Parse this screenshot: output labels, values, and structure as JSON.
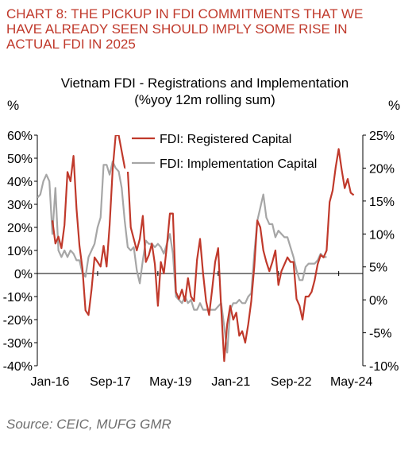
{
  "header": {
    "lines": [
      "CHART 8: THE PICKUP IN FDI COMMITMENTS THAT WE",
      "HAVE ALREADY SEEN SHOULD IMPLY SOME RISE IN",
      "ACTUAL FDI IN 2025"
    ]
  },
  "source": "Source: CEIC, MUFG GMR",
  "colors": {
    "registered": "#c0392b",
    "implementation": "#a6a6a6",
    "title_red": "#c0392b",
    "axis": "#000000"
  },
  "chart_data": {
    "type": "line",
    "title": "Vietnam FDI - Registrations and Implementation",
    "subtitle": "(%yoy 12m rolling sum)",
    "ylabel_left": "%",
    "ylabel_right": "%",
    "x_tick_labels": [
      "Jan-16",
      "Sep-17",
      "May-19",
      "Jan-21",
      "Sep-22",
      "May-24"
    ],
    "x_range": [
      "2016-01",
      "2025-01"
    ],
    "ylim_left": [
      -40,
      60
    ],
    "ylim_right": [
      -10,
      25
    ],
    "y_ticks_left": [
      "60%",
      "50%",
      "40%",
      "30%",
      "20%",
      "10%",
      "0%",
      "-10%",
      "-20%",
      "-30%",
      "-40%"
    ],
    "y_ticks_right": [
      "25%",
      "20%",
      "15%",
      "10%",
      "5%",
      "0%",
      "-5%",
      "-10%"
    ],
    "legend_position": "top-right",
    "grid": false,
    "series": [
      {
        "name": "FDI: Registered Capital",
        "axis": "left",
        "points": [
          [
            "2016-06",
            23
          ],
          [
            "2016-07",
            13
          ],
          [
            "2016-08",
            16
          ],
          [
            "2016-09",
            11
          ],
          [
            "2016-10",
            21
          ],
          [
            "2016-11",
            44
          ],
          [
            "2016-12",
            40
          ],
          [
            "2017-01",
            51
          ],
          [
            "2017-02",
            28
          ],
          [
            "2017-03",
            12
          ],
          [
            "2017-04",
            2
          ],
          [
            "2017-05",
            -16
          ],
          [
            "2017-06",
            -18
          ],
          [
            "2017-07",
            -7
          ],
          [
            "2017-08",
            7
          ],
          [
            "2017-09",
            5
          ],
          [
            "2017-10",
            3
          ],
          [
            "2017-11",
            12
          ],
          [
            "2017-12",
            3
          ],
          [
            "2018-01",
            21
          ],
          [
            "2018-02",
            45
          ],
          [
            "2018-03",
            60
          ],
          [
            "2018-04",
            60
          ],
          [
            "2018-05",
            53
          ],
          [
            "2018-06",
            46
          ],
          [
            "2018-07",
            45
          ],
          [
            "2018-08",
            20
          ],
          [
            "2018-09",
            15
          ],
          [
            "2018-10",
            10
          ],
          [
            "2018-11",
            15
          ],
          [
            "2018-12",
            25
          ],
          [
            "2019-01",
            5
          ],
          [
            "2019-02",
            8
          ],
          [
            "2019-03",
            13
          ],
          [
            "2019-04",
            4
          ],
          [
            "2019-05",
            -14
          ],
          [
            "2019-06",
            5
          ],
          [
            "2019-07",
            0
          ],
          [
            "2019-08",
            12
          ],
          [
            "2019-09",
            26
          ],
          [
            "2019-10",
            26
          ],
          [
            "2019-11",
            -8
          ],
          [
            "2019-12",
            -11
          ],
          [
            "2020-01",
            -7
          ],
          [
            "2020-02",
            -12
          ],
          [
            "2020-03",
            -2
          ],
          [
            "2020-04",
            -10
          ],
          [
            "2020-05",
            -12
          ],
          [
            "2020-06",
            6
          ],
          [
            "2020-07",
            15
          ],
          [
            "2020-08",
            0
          ],
          [
            "2020-09",
            -12
          ],
          [
            "2020-10",
            -18
          ],
          [
            "2020-11",
            -7
          ],
          [
            "2020-12",
            5
          ],
          [
            "2021-01",
            11
          ],
          [
            "2021-02",
            -15
          ],
          [
            "2021-03",
            -38
          ],
          [
            "2021-04",
            -22
          ],
          [
            "2021-05",
            -14
          ],
          [
            "2021-06",
            -20
          ],
          [
            "2021-07",
            -17
          ],
          [
            "2021-08",
            -27
          ],
          [
            "2021-09",
            -25
          ],
          [
            "2021-10",
            -30
          ],
          [
            "2021-11",
            -22
          ],
          [
            "2021-12",
            -12
          ],
          [
            "2022-01",
            3
          ],
          [
            "2022-02",
            23
          ],
          [
            "2022-03",
            20
          ],
          [
            "2022-04",
            10
          ],
          [
            "2022-05",
            5
          ],
          [
            "2022-06",
            1
          ],
          [
            "2022-07",
            5
          ],
          [
            "2022-08",
            10
          ],
          [
            "2022-09",
            -5
          ],
          [
            "2022-10",
            1
          ],
          [
            "2022-11",
            4
          ],
          [
            "2022-12",
            7
          ],
          [
            "2023-01",
            5
          ],
          [
            "2023-02",
            5
          ],
          [
            "2023-03",
            -11
          ],
          [
            "2023-04",
            -14
          ],
          [
            "2023-05",
            -20
          ],
          [
            "2023-06",
            -10
          ],
          [
            "2023-07",
            -10
          ],
          [
            "2023-08",
            -8
          ],
          [
            "2023-09",
            -3
          ],
          [
            "2023-10",
            4
          ],
          [
            "2023-11",
            8
          ],
          [
            "2023-12",
            7
          ],
          [
            "2024-01",
            10
          ],
          [
            "2024-02",
            31
          ],
          [
            "2024-03",
            36
          ],
          [
            "2024-04",
            46
          ],
          [
            "2024-05",
            54
          ],
          [
            "2024-06",
            45
          ],
          [
            "2024-07",
            37
          ],
          [
            "2024-08",
            41
          ],
          [
            "2024-09",
            35
          ],
          [
            "2024-10",
            34
          ]
        ]
      },
      {
        "name": "FDI: Implementation Capital",
        "axis": "right",
        "points": [
          [
            "2016-01",
            15.5
          ],
          [
            "2016-02",
            16
          ],
          [
            "2016-03",
            18
          ],
          [
            "2016-04",
            19
          ],
          [
            "2016-05",
            18
          ],
          [
            "2016-06",
            10
          ],
          [
            "2016-07",
            17
          ],
          [
            "2016-08",
            7.5
          ],
          [
            "2016-09",
            6.5
          ],
          [
            "2016-10",
            7.5
          ],
          [
            "2016-11",
            6.5
          ],
          [
            "2016-12",
            7.5
          ],
          [
            "2017-01",
            7
          ],
          [
            "2017-02",
            6
          ],
          [
            "2017-03",
            6
          ],
          [
            "2017-04",
            4
          ],
          [
            "2017-05",
            3.5
          ],
          [
            "2017-06",
            6.5
          ],
          [
            "2017-07",
            7.5
          ],
          [
            "2017-08",
            8.5
          ],
          [
            "2017-09",
            11
          ],
          [
            "2017-10",
            12.5
          ],
          [
            "2017-11",
            20.5
          ],
          [
            "2017-12",
            20.5
          ],
          [
            "2018-01",
            19
          ],
          [
            "2018-02",
            21
          ],
          [
            "2018-03",
            20
          ],
          [
            "2018-04",
            19.5
          ],
          [
            "2018-05",
            17
          ],
          [
            "2018-06",
            12
          ],
          [
            "2018-07",
            8
          ],
          [
            "2018-08",
            7.5
          ],
          [
            "2018-09",
            8
          ],
          [
            "2018-10",
            4.5
          ],
          [
            "2018-11",
            2.5
          ],
          [
            "2018-12",
            6
          ],
          [
            "2019-01",
            9
          ],
          [
            "2019-02",
            8.5
          ],
          [
            "2019-03",
            8.5
          ],
          [
            "2019-04",
            8
          ],
          [
            "2019-05",
            8.5
          ],
          [
            "2019-06",
            8
          ],
          [
            "2019-07",
            7
          ],
          [
            "2019-08",
            8.5
          ],
          [
            "2019-09",
            10
          ],
          [
            "2019-10",
            7
          ],
          [
            "2019-11",
            0.5
          ],
          [
            "2019-12",
            0
          ],
          [
            "2020-01",
            -0.5
          ],
          [
            "2020-02",
            0.5
          ],
          [
            "2020-03",
            -0.5
          ],
          [
            "2020-04",
            0
          ],
          [
            "2020-05",
            -1.5
          ],
          [
            "2020-06",
            -1.5
          ],
          [
            "2020-07",
            -0.5
          ],
          [
            "2020-08",
            -1.5
          ],
          [
            "2020-09",
            -1.5
          ],
          [
            "2020-10",
            -1.5
          ],
          [
            "2020-11",
            -1.5
          ],
          [
            "2020-12",
            -1.5
          ],
          [
            "2021-01",
            -1
          ],
          [
            "2021-02",
            -0.5
          ],
          [
            "2021-03",
            -4
          ],
          [
            "2021-04",
            -8
          ],
          [
            "2021-05",
            -1.5
          ],
          [
            "2021-06",
            -0.5
          ],
          [
            "2021-07",
            -0.5
          ],
          [
            "2021-08",
            0
          ],
          [
            "2021-09",
            -0.5
          ],
          [
            "2021-10",
            -0.5
          ],
          [
            "2021-11",
            0.5
          ],
          [
            "2021-12",
            1
          ],
          [
            "2022-01",
            7
          ],
          [
            "2022-02",
            12
          ],
          [
            "2022-03",
            14
          ],
          [
            "2022-04",
            16
          ],
          [
            "2022-05",
            12.5
          ],
          [
            "2022-06",
            11.5
          ],
          [
            "2022-07",
            11.5
          ],
          [
            "2022-08",
            9.5
          ],
          [
            "2022-09",
            10.5
          ],
          [
            "2022-10",
            10
          ],
          [
            "2022-11",
            9.5
          ],
          [
            "2022-12",
            9.5
          ],
          [
            "2023-01",
            8
          ],
          [
            "2023-02",
            6.5
          ],
          [
            "2023-03",
            4.5
          ],
          [
            "2023-04",
            3
          ],
          [
            "2023-05",
            3
          ],
          [
            "2023-06",
            5
          ],
          [
            "2023-07",
            5.5
          ],
          [
            "2023-08",
            5.5
          ],
          [
            "2023-09",
            5.5
          ],
          [
            "2023-10",
            6
          ],
          [
            "2023-11",
            7
          ],
          [
            "2023-12",
            6.5
          ],
          [
            "2024-01",
            6.5
          ]
        ]
      }
    ]
  }
}
